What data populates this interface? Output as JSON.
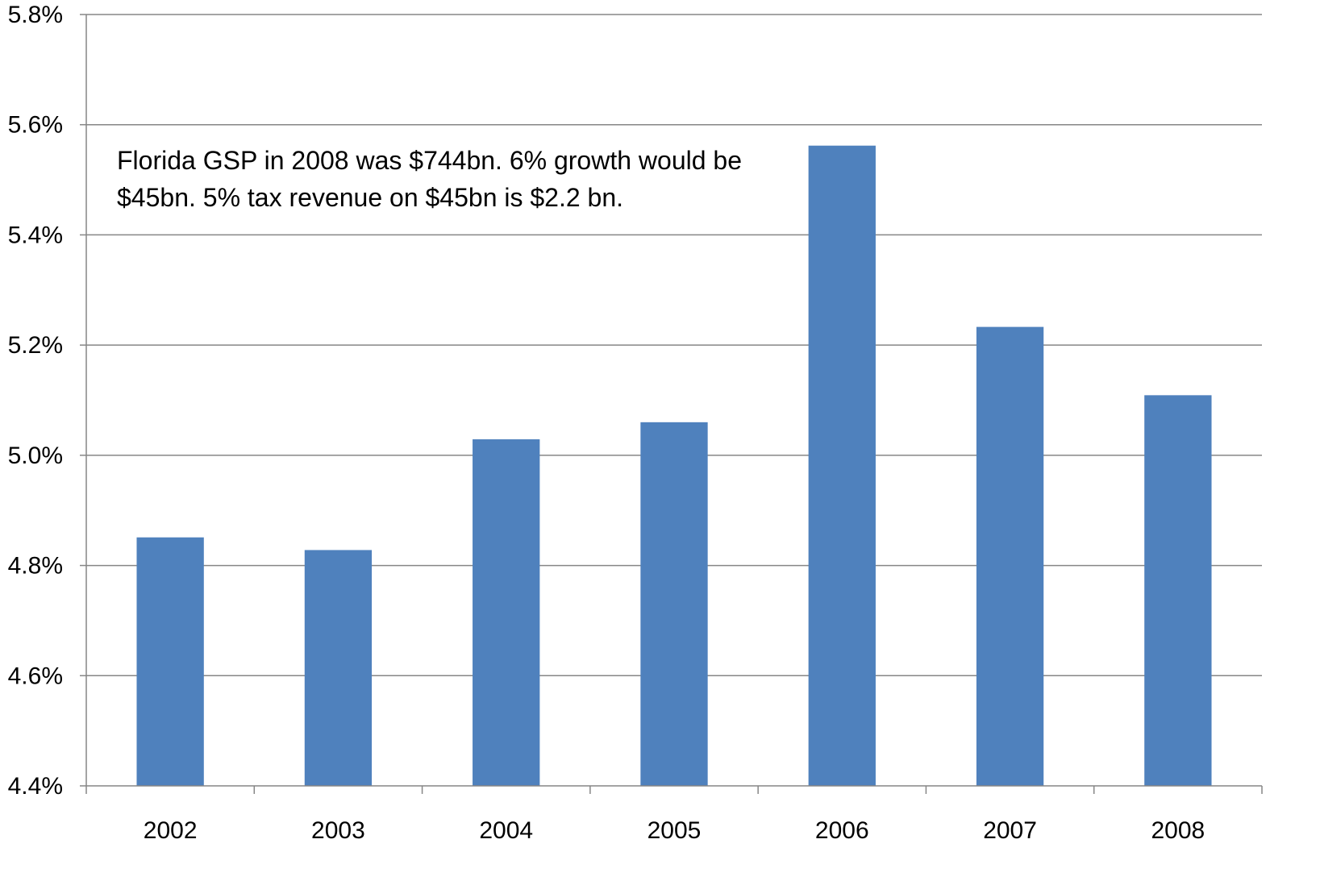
{
  "chart_data": {
    "type": "bar",
    "categories": [
      "2002",
      "2003",
      "2004",
      "2005",
      "2006",
      "2007",
      "2008"
    ],
    "series": [
      {
        "values": [
          4.851,
          4.828,
          5.029,
          5.06,
          5.562,
          5.233,
          5.109
        ],
        "color": "#4F81BD"
      }
    ],
    "ylim": [
      4.4,
      5.8
    ],
    "yticks": [
      "4.4%",
      "4.6%",
      "4.8%",
      "5.0%",
      "5.2%",
      "5.4%",
      "5.6%",
      "5.8%"
    ],
    "ytick_values": [
      4.4,
      4.6,
      4.8,
      5.0,
      5.2,
      5.4,
      5.6,
      5.8
    ],
    "grid": true,
    "legend": "none",
    "title": "",
    "xlabel": "",
    "ylabel": "",
    "annotation": {
      "lines": [
        "Florida GSP  in 2008 was $744bn.  6% growth  would be",
        "$45bn.  5% tax revenue  on $45bn is  $2.2 bn."
      ]
    },
    "colors": {
      "bar": "#4F81BD",
      "grid": "#868686",
      "axis": "#868686"
    }
  }
}
